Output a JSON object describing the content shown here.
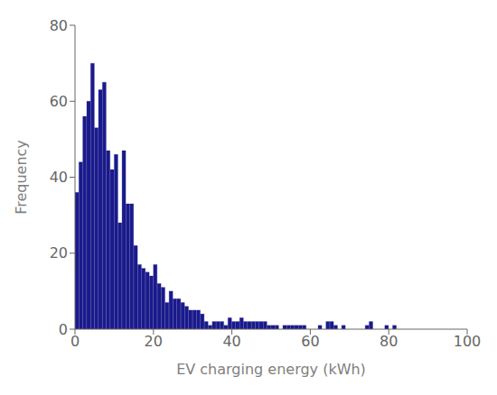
{
  "chart_data": {
    "type": "histogram",
    "xlabel": "EV charging energy (kWh)",
    "ylabel": "Frequency",
    "bins": [
      0,
      1,
      2,
      3,
      4,
      5,
      6,
      7,
      8,
      9,
      10,
      11,
      12,
      13,
      14,
      15,
      16,
      17,
      18,
      19,
      20,
      21,
      22,
      23,
      24,
      25,
      26,
      27,
      28,
      29,
      30,
      31,
      32,
      33,
      34,
      35,
      36,
      37,
      38,
      39,
      40,
      41,
      42,
      43,
      44,
      45,
      46,
      47,
      48,
      49,
      50,
      51,
      52,
      53,
      54,
      55,
      56,
      57,
      58,
      59,
      60,
      61,
      62,
      63,
      64,
      65,
      66,
      67,
      68,
      69,
      70,
      71,
      72,
      73,
      74,
      75,
      76,
      77,
      78,
      79,
      80,
      81,
      82,
      83,
      84,
      85,
      86,
      87,
      88,
      89,
      90,
      91,
      92,
      93,
      94,
      95,
      96,
      97,
      98,
      99,
      100
    ],
    "values": [
      36,
      44,
      56,
      60,
      70,
      53,
      63,
      65,
      47,
      42,
      46,
      28,
      47,
      33,
      33,
      22,
      17,
      16,
      15,
      14,
      17,
      12,
      11,
      7,
      10,
      8,
      8,
      7,
      6,
      5,
      5,
      5,
      4,
      2,
      1,
      2,
      2,
      2,
      1,
      3,
      2,
      2,
      3,
      2,
      2,
      2,
      2,
      2,
      2,
      1,
      1,
      1,
      0,
      1,
      1,
      1,
      1,
      1,
      1,
      0,
      0,
      0,
      1,
      0,
      2,
      2,
      1,
      0,
      1,
      0,
      0,
      0,
      0,
      0,
      1,
      2,
      0,
      0,
      0,
      1,
      0,
      1,
      0,
      0,
      0,
      0,
      0,
      0,
      0,
      0,
      0,
      0,
      0,
      0,
      0,
      0,
      0,
      0,
      0,
      0
    ],
    "color": "#1a1a8c",
    "xlim": [
      0,
      100
    ],
    "ylim": [
      0,
      80
    ],
    "xticks": [
      0,
      20,
      40,
      60,
      80,
      100
    ],
    "yticks": [
      0,
      20,
      40,
      60,
      80
    ],
    "grid": false
  }
}
